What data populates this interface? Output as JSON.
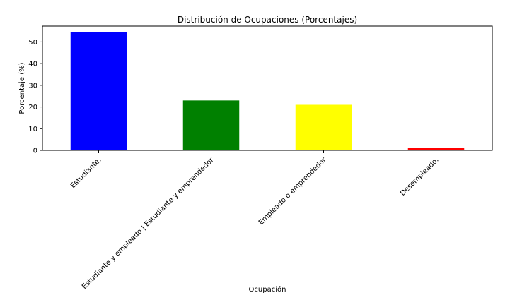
{
  "chart_data": {
    "type": "bar",
    "title": "Distribución de Ocupaciones (Porcentajes)",
    "xlabel": "Ocupación",
    "ylabel": "Porcentaje (%)",
    "categories": [
      "Estudiante.",
      "Estudiante y empleado | Estudiante y emprendedor",
      "Empleado o emprendedor",
      "Desempleado."
    ],
    "values": [
      54.5,
      23.0,
      21.0,
      1.2
    ],
    "colors": [
      "#0000ff",
      "#008000",
      "#ffff00",
      "#ff0000"
    ],
    "ylim": [
      0,
      57.3
    ],
    "yticks": [
      0,
      10,
      20,
      30,
      40,
      50
    ],
    "grid": false,
    "legend": "none"
  }
}
